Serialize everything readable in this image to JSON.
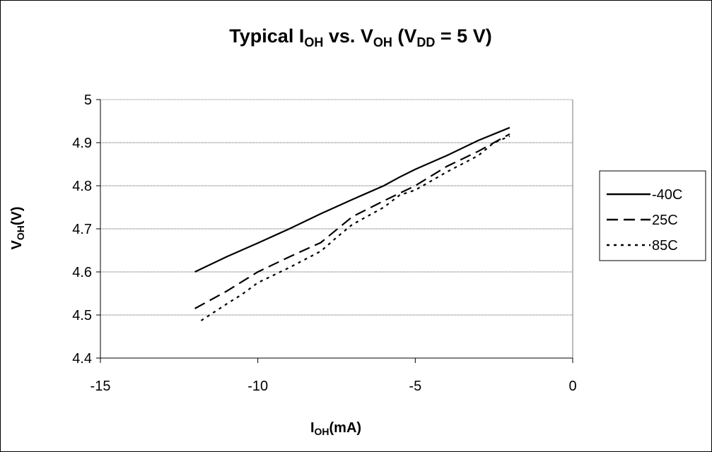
{
  "chart_data": {
    "type": "line",
    "title": {
      "main": "Typical I",
      "main_sub": "OH",
      "mid": " vs. V",
      "mid_sub": "OH",
      "paren": " (V",
      "paren_sub": "DD",
      "tail": " = 5 V)"
    },
    "xlabel": {
      "main": "I",
      "sub": "OH",
      "tail": "(mA)"
    },
    "ylabel": {
      "main": "V",
      "sub": "OH",
      "tail": "(V)"
    },
    "xlim": [
      -15,
      0
    ],
    "ylim": [
      4.4,
      5.0
    ],
    "xticks": [
      -15,
      -10,
      -5,
      0
    ],
    "xtick_labels": [
      "-15",
      "-10",
      "-5",
      "0"
    ],
    "yticks": [
      4.4,
      4.5,
      4.6,
      4.7,
      4.8,
      4.9,
      5.0
    ],
    "ytick_labels": [
      "4.4",
      "4.5",
      "4.6",
      "4.7",
      "4.8",
      "4.9",
      "5"
    ],
    "grid": "horizontal dotted",
    "legend_position": "right",
    "series": [
      {
        "name": "-40C",
        "style": "solid",
        "x": [
          -12,
          -11,
          -10,
          -9,
          -8,
          -7,
          -6,
          -5.5,
          -5,
          -4,
          -3,
          -2
        ],
        "y": [
          4.6,
          4.635,
          4.667,
          4.7,
          4.735,
          4.768,
          4.8,
          4.82,
          4.838,
          4.87,
          4.905,
          4.935
        ]
      },
      {
        "name": "25C",
        "style": "dashed",
        "x": [
          -12,
          -11,
          -10,
          -9,
          -8,
          -7,
          -6,
          -5,
          -4,
          -3,
          -2
        ],
        "y": [
          4.515,
          4.555,
          4.6,
          4.635,
          4.668,
          4.728,
          4.765,
          4.8,
          4.845,
          4.88,
          4.92
        ]
      },
      {
        "name": "85C",
        "style": "dotted",
        "x": [
          -11.8,
          -11,
          -10.5,
          -10,
          -9,
          -8,
          -7.5,
          -7,
          -6,
          -5.5,
          -5,
          -4,
          -3,
          -2.5,
          -2
        ],
        "y": [
          4.487,
          4.525,
          4.548,
          4.575,
          4.61,
          4.648,
          4.68,
          4.71,
          4.75,
          4.778,
          4.79,
          4.832,
          4.87,
          4.9,
          4.915
        ]
      }
    ]
  }
}
